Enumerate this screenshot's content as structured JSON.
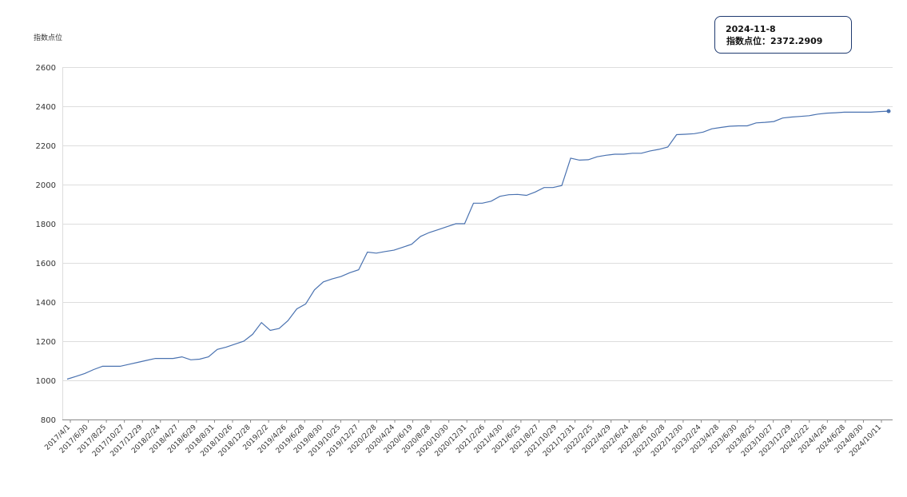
{
  "tooltip": {
    "date": "2024-11-8",
    "label": "指数点位：",
    "value": "2372.2909"
  },
  "colors": {
    "line": "#4a72b0",
    "grid": "#dddddd",
    "axis": "#888888"
  },
  "chart_data": {
    "type": "line",
    "title": "",
    "xlabel": "",
    "ylabel": "指数点位",
    "ylim": [
      800,
      2600
    ],
    "yticks": [
      800,
      1000,
      1200,
      1400,
      1600,
      1800,
      2000,
      2200,
      2400,
      2600
    ],
    "grid": true,
    "legend": "none",
    "xticks": [
      "2017/4/1",
      "2017/6/30",
      "2017/8/25",
      "2017/10/27",
      "2017/12/29",
      "2018/2/24",
      "2018/4/27",
      "2018/6/29",
      "2018/8/31",
      "2018/10/26",
      "2018/12/28",
      "2019/2/2",
      "2019/4/26",
      "2019/6/28",
      "2019/8/30",
      "2019/10/25",
      "2019/12/27",
      "2020/2/28",
      "2020/4/24",
      "2020/6/19",
      "2020/8/28",
      "2020/10/30",
      "2020/12/31",
      "2021/2/26",
      "2021/4/30",
      "2021/6/25",
      "2021/8/27",
      "2021/10/29",
      "2021/12/31",
      "2022/2/25",
      "2022/4/29",
      "2022/6/24",
      "2022/8/26",
      "2022/10/28",
      "2022/12/30",
      "2023/2/24",
      "2023/4/28",
      "2023/6/30",
      "2023/8/25",
      "2023/10/27",
      "2023/12/29",
      "2024/2/22",
      "2024/4/26",
      "2024/6/28",
      "2024/8/30",
      "2024/10/11"
    ],
    "series": [
      {
        "values": [
          1006,
          1020,
          1035,
          1055,
          1072,
          1072,
          1072,
          1082,
          1092,
          1102,
          1112,
          1112,
          1112,
          1120,
          1105,
          1108,
          1120,
          1158,
          1170,
          1185,
          1200,
          1235,
          1295,
          1255,
          1265,
          1305,
          1365,
          1390,
          1462,
          1503,
          1518,
          1530,
          1550,
          1565,
          1655,
          1650,
          1658,
          1665,
          1680,
          1695,
          1735,
          1755,
          1770,
          1785,
          1800,
          1800,
          1905,
          1905,
          1915,
          1940,
          1948,
          1950,
          1945,
          1962,
          1985,
          1985,
          1995,
          2135,
          2125,
          2127,
          2142,
          2150,
          2155,
          2155,
          2160,
          2160,
          2172,
          2180,
          2192,
          2255,
          2257,
          2260,
          2268,
          2285,
          2292,
          2298,
          2300,
          2300,
          2315,
          2318,
          2322,
          2340,
          2345,
          2348,
          2352,
          2360,
          2365,
          2367,
          2370,
          2370,
          2370,
          2370,
          2373,
          2375
        ]
      }
    ],
    "last_point_marker": true
  }
}
